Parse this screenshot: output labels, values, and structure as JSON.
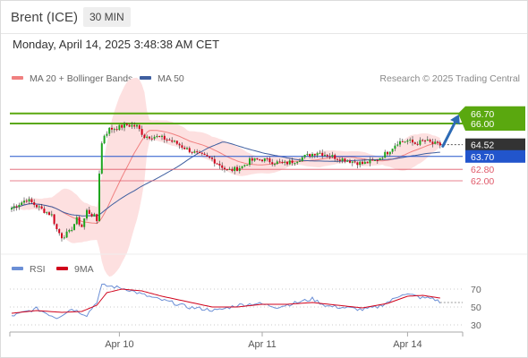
{
  "header": {
    "instrument": "Brent (ICE)",
    "timeframe": "30 MIN",
    "datetime": "Monday, April 14, 2025 3:48:38 AM CET"
  },
  "legend": {
    "ma20_bb": "MA 20 + Bollinger Bands",
    "ma50": "MA 50",
    "rsi": "RSI",
    "rsi_ma": "9MA"
  },
  "credit": "Research © 2025 Trading Central",
  "colors": {
    "bullish": "#1ea51e",
    "bearish": "#d0021b",
    "ma20": "#f08080",
    "bollinger_fill": "#fde0e0",
    "ma50": "#3f5fa0",
    "resistance": "#5aa80f",
    "support": "#e05a6a",
    "pivot": "#2255cc",
    "current_price": "#333333",
    "rsi": "#6b8fd6",
    "rsi_ma": "#d0021b",
    "arrow": "#2d6bb5"
  },
  "chart_data": {
    "type": "candlestick",
    "price_range": [
      57.5,
      68.5
    ],
    "x_ticks": [
      "Apr 10",
      "Apr 11",
      "Apr 14"
    ],
    "levels": [
      {
        "label": "66.70",
        "value": 66.7,
        "kind": "resistance"
      },
      {
        "label": "66.00",
        "value": 66.0,
        "kind": "resistance"
      },
      {
        "label": "64.52",
        "value": 64.52,
        "kind": "current"
      },
      {
        "label": "63.70",
        "value": 63.7,
        "kind": "pivot"
      },
      {
        "label": "62.80",
        "value": 62.8,
        "kind": "support"
      },
      {
        "label": "62.00",
        "value": 62.0,
        "kind": "support"
      }
    ],
    "price_path": [
      [
        0,
        60.1
      ],
      [
        6,
        60.7
      ],
      [
        12,
        60.0
      ],
      [
        16,
        59.6
      ],
      [
        18,
        58.6
      ],
      [
        20,
        58.1
      ],
      [
        23,
        58.4
      ],
      [
        26,
        59.3
      ],
      [
        28,
        58.8
      ],
      [
        30,
        59.9
      ],
      [
        33,
        59.5
      ],
      [
        34,
        59.2
      ],
      [
        35,
        62.6
      ],
      [
        36,
        64.6
      ],
      [
        37,
        65.2
      ],
      [
        39,
        65.6
      ],
      [
        42,
        65.7
      ],
      [
        46,
        65.9
      ],
      [
        50,
        65.8
      ],
      [
        53,
        65.1
      ],
      [
        57,
        65.1
      ],
      [
        62,
        64.9
      ],
      [
        66,
        64.6
      ],
      [
        70,
        64.2
      ],
      [
        75,
        63.8
      ],
      [
        80,
        63.5
      ],
      [
        84,
        63.0
      ],
      [
        86,
        62.7
      ],
      [
        89,
        62.8
      ],
      [
        92,
        63.0
      ],
      [
        95,
        63.4
      ],
      [
        100,
        63.5
      ],
      [
        105,
        63.3
      ],
      [
        109,
        63.2
      ],
      [
        113,
        63.4
      ],
      [
        117,
        63.7
      ],
      [
        122,
        64.0
      ],
      [
        126,
        63.8
      ],
      [
        130,
        63.6
      ],
      [
        135,
        63.4
      ],
      [
        140,
        63.2
      ],
      [
        145,
        63.4
      ],
      [
        150,
        64.0
      ],
      [
        154,
        64.7
      ],
      [
        158,
        64.8
      ],
      [
        161,
        64.6
      ],
      [
        165,
        64.8
      ],
      [
        168,
        64.6
      ],
      [
        171,
        64.5
      ]
    ],
    "rsi_levels": [
      70,
      50,
      30
    ],
    "rsi_range": [
      20,
      80
    ],
    "rsi_path": [
      [
        0,
        40
      ],
      [
        10,
        48
      ],
      [
        18,
        38
      ],
      [
        24,
        48
      ],
      [
        30,
        41
      ],
      [
        34,
        56
      ],
      [
        36,
        74
      ],
      [
        40,
        73
      ],
      [
        46,
        70
      ],
      [
        52,
        64
      ],
      [
        58,
        59
      ],
      [
        64,
        55
      ],
      [
        70,
        50
      ],
      [
        76,
        48
      ],
      [
        82,
        46
      ],
      [
        90,
        52
      ],
      [
        98,
        54
      ],
      [
        106,
        50
      ],
      [
        114,
        55
      ],
      [
        120,
        59
      ],
      [
        126,
        51
      ],
      [
        134,
        49
      ],
      [
        140,
        47
      ],
      [
        146,
        50
      ],
      [
        152,
        58
      ],
      [
        156,
        65
      ],
      [
        160,
        63
      ],
      [
        164,
        60
      ],
      [
        168,
        60
      ],
      [
        171,
        55
      ]
    ],
    "rsi_ma_path": [
      [
        0,
        43
      ],
      [
        10,
        46
      ],
      [
        20,
        44
      ],
      [
        28,
        45
      ],
      [
        34,
        52
      ],
      [
        38,
        66
      ],
      [
        44,
        70
      ],
      [
        52,
        68
      ],
      [
        60,
        62
      ],
      [
        70,
        56
      ],
      [
        80,
        50
      ],
      [
        90,
        50
      ],
      [
        100,
        53
      ],
      [
        110,
        53
      ],
      [
        120,
        55
      ],
      [
        130,
        52
      ],
      [
        140,
        49
      ],
      [
        150,
        54
      ],
      [
        158,
        62
      ],
      [
        164,
        63
      ],
      [
        171,
        60
      ]
    ]
  }
}
